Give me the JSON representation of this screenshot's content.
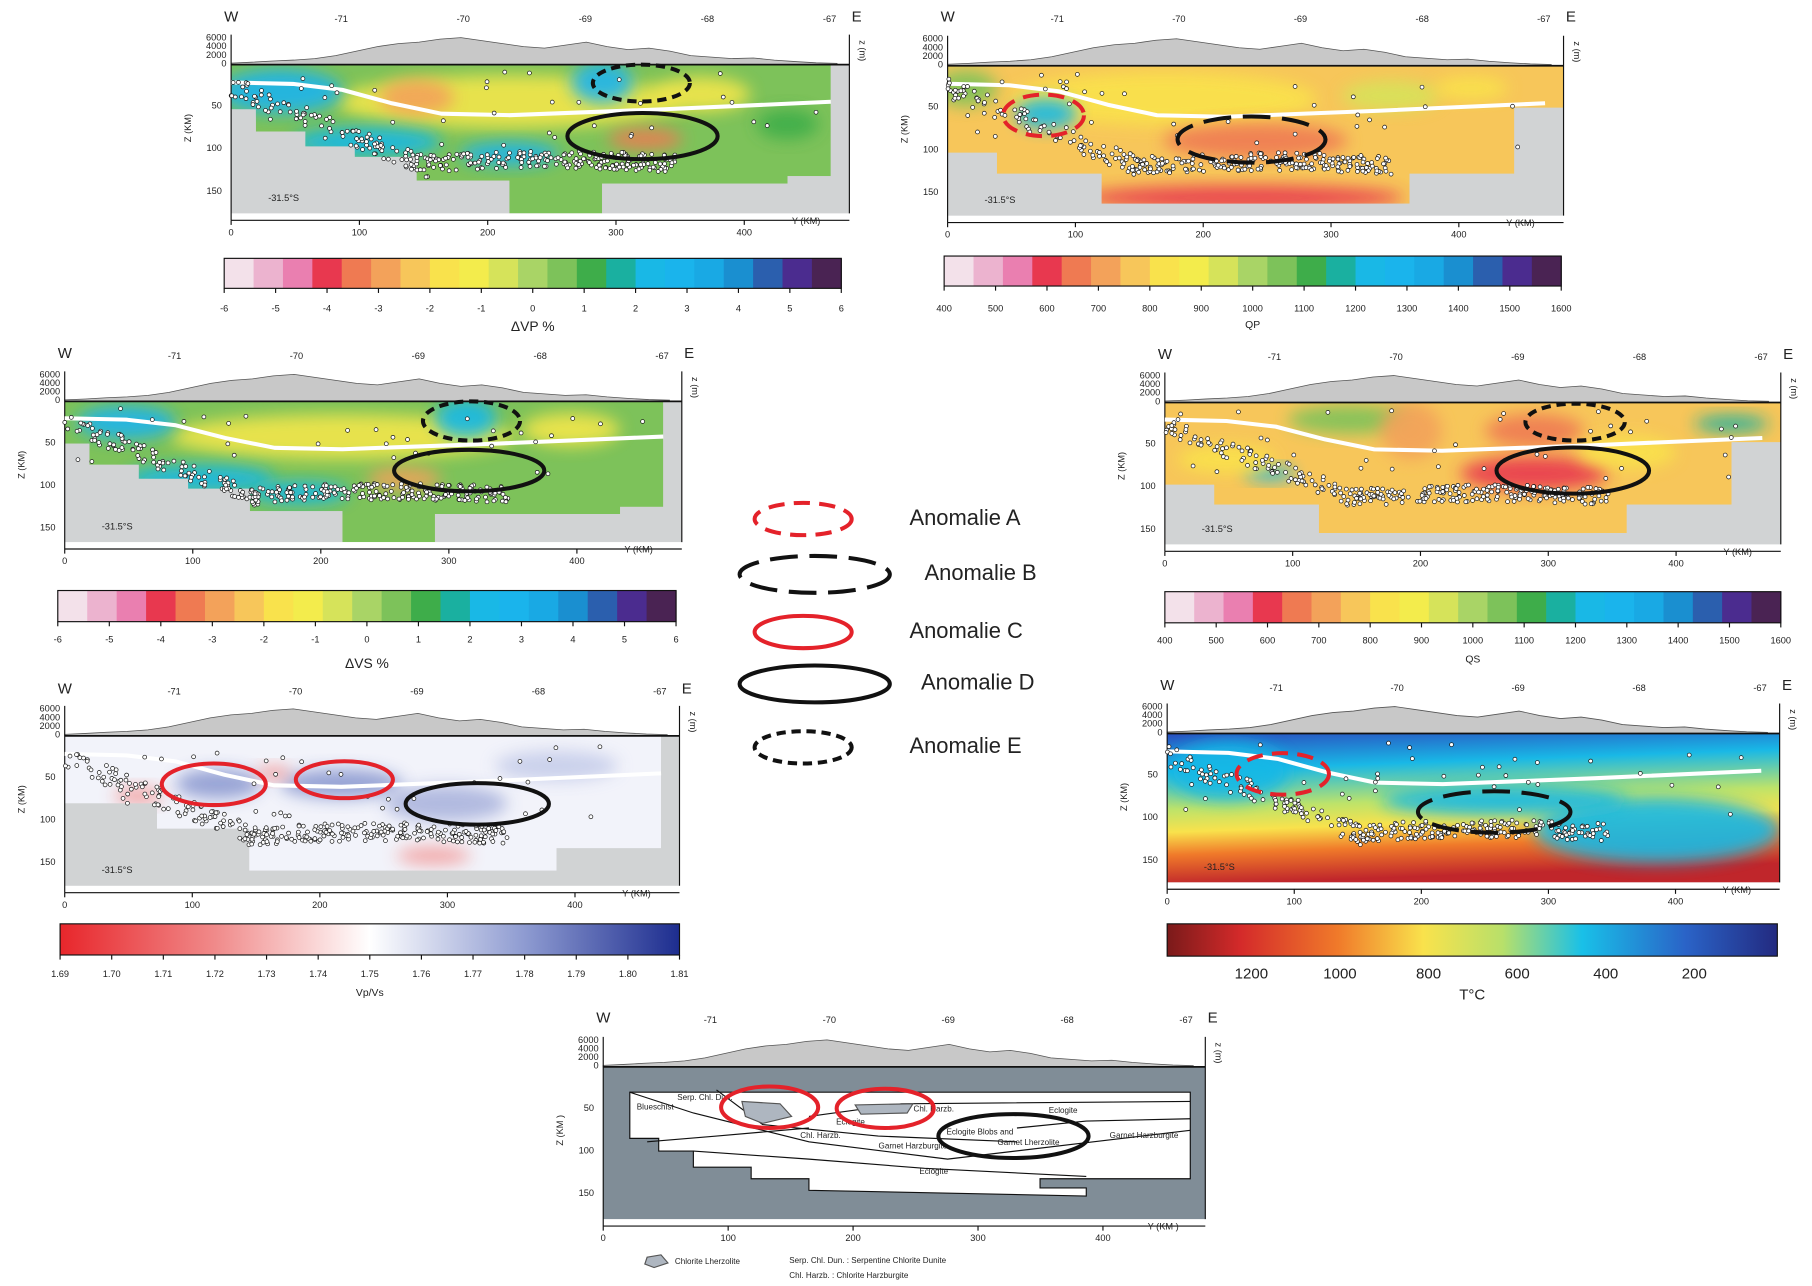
{
  "panels": [
    {
      "west": "W",
      "east": "E",
      "longitudes": [
        "-71",
        "-70",
        "-69",
        "-68",
        "-67"
      ],
      "elevations": [
        "6000",
        "4000",
        "2000",
        "0"
      ],
      "depths": [
        "50",
        "100",
        "150"
      ],
      "distances": [
        "0",
        "100",
        "200",
        "300",
        "400"
      ],
      "depth_label": "Z (KM)",
      "elevation_label": "z (m)",
      "distance_label": "Y (KM)",
      "latitude": "-31.5°S",
      "colorbar": {
        "ticks": [
          "-6",
          "-5",
          "-4",
          "-3",
          "-2",
          "-1",
          "0",
          "1",
          "2",
          "3",
          "4",
          "5",
          "6"
        ],
        "label": "ΔVP %"
      }
    },
    {
      "west": "W",
      "east": "E",
      "longitudes": [
        "-71",
        "-70",
        "-69",
        "-68",
        "-67"
      ],
      "elevations": [
        "6000",
        "4000",
        "2000",
        "0"
      ],
      "depths": [
        "50",
        "100",
        "150"
      ],
      "distances": [
        "0",
        "100",
        "200",
        "300",
        "400"
      ],
      "depth_label": "Z (KM)",
      "elevation_label": "z (m)",
      "distance_label": "Y (KM)",
      "latitude": "-31.5°S",
      "colorbar": {
        "ticks": [
          "400",
          "500",
          "600",
          "700",
          "800",
          "900",
          "1000",
          "1100",
          "1200",
          "1300",
          "1400",
          "1500",
          "1600"
        ],
        "label": "QP"
      }
    },
    {
      "west": "W",
      "east": "E",
      "longitudes": [
        "-71",
        "-70",
        "-69",
        "-68",
        "-67"
      ],
      "elevations": [
        "6000",
        "4000",
        "2000",
        "0"
      ],
      "depths": [
        "50",
        "100",
        "150"
      ],
      "distances": [
        "0",
        "100",
        "200",
        "300",
        "400"
      ],
      "depth_label": "Z (KM)",
      "elevation_label": "z (m)",
      "distance_label": "Y (KM)",
      "latitude": "-31.5°S",
      "colorbar": {
        "ticks": [
          "-6",
          "-5",
          "-4",
          "-3",
          "-2",
          "-1",
          "0",
          "1",
          "2",
          "3",
          "4",
          "5",
          "6"
        ],
        "label": "ΔVS %"
      }
    },
    {
      "west": "W",
      "east": "E",
      "longitudes": [
        "-71",
        "-70",
        "-69",
        "-68",
        "-67"
      ],
      "elevations": [
        "6000",
        "4000",
        "2000",
        "0"
      ],
      "depths": [
        "50",
        "100",
        "150"
      ],
      "distances": [
        "0",
        "100",
        "200",
        "300",
        "400"
      ],
      "depth_label": "Z (KM)",
      "elevation_label": "z (m)",
      "distance_label": "Y (KM)",
      "latitude": "-31.5°S",
      "colorbar": {
        "ticks": [
          "400",
          "500",
          "600",
          "700",
          "800",
          "900",
          "1000",
          "1100",
          "1200",
          "1300",
          "1400",
          "1500",
          "1600"
        ],
        "label": "QS"
      }
    },
    {
      "west": "W",
      "east": "E",
      "longitudes": [
        "-71",
        "-70",
        "-69",
        "-68",
        "-67"
      ],
      "elevations": [
        "6000",
        "4000",
        "2000",
        "0"
      ],
      "depths": [
        "50",
        "100",
        "150"
      ],
      "distances": [
        "0",
        "100",
        "200",
        "300",
        "400"
      ],
      "depth_label": "Z (KM)",
      "elevation_label": "z (m)",
      "distance_label": "Y (KM)",
      "latitude": "-31.5°S",
      "colorbar": {
        "ticks": [
          "1.69",
          "1.70",
          "1.71",
          "1.72",
          "1.73",
          "1.74",
          "1.75",
          "1.76",
          "1.77",
          "1.78",
          "1.79",
          "1.80",
          "1.81"
        ],
        "label": "Vp/Vs"
      }
    },
    {
      "west": "W",
      "east": "E",
      "longitudes": [
        "-71",
        "-70",
        "-69",
        "-68",
        "-67"
      ],
      "elevations": [
        "6000",
        "4000",
        "2000",
        "0"
      ],
      "depths": [
        "50",
        "100",
        "150"
      ],
      "distances": [
        "0",
        "100",
        "200",
        "300",
        "400"
      ],
      "depth_label": "Z (KM)",
      "elevation_label": "z (m)",
      "distance_label": "Y (KM)",
      "latitude": "-31.5°S",
      "colorbar": {
        "ticks": [
          "1200",
          "1000",
          "800",
          "600",
          "400",
          "200"
        ],
        "label": "T°C"
      }
    },
    {
      "west": "W",
      "east": "E",
      "longitudes": [
        "-71",
        "-70",
        "-69",
        "-68",
        "-67"
      ],
      "elevations": [
        "6000",
        "4000",
        "2000",
        "0"
      ],
      "depths": [
        "50",
        "100",
        "150"
      ],
      "distances": [
        "0",
        "100",
        "200",
        "300",
        "400"
      ],
      "depth_label": "Z (KM )",
      "elevation_label": "z (m)",
      "distance_label": "Y (KM )"
    }
  ],
  "legend": [
    "Anomalie A",
    "Anomalie B",
    "Anomalie C",
    "Anomalie D",
    "Anomalie E"
  ],
  "section": {
    "units": [
      "Blueschist",
      "Serp. Chl. Dun.",
      "Eclogite",
      "Chl. Harzb.",
      "Eclogite",
      "Chl. Harzb.",
      "Garnet Harzburgite",
      "Eclogite Blobs and",
      "Garnet Lherzolite",
      "Garnet Harzburgite",
      "Eclogite"
    ],
    "symbol_label": "Chlorite Lherzolite",
    "notes": [
      "Serp. Chl. Dun. : Serpentine Chlorite Dunite",
      "Chl. Harzb. : Chlorite Harzburgite"
    ]
  }
}
